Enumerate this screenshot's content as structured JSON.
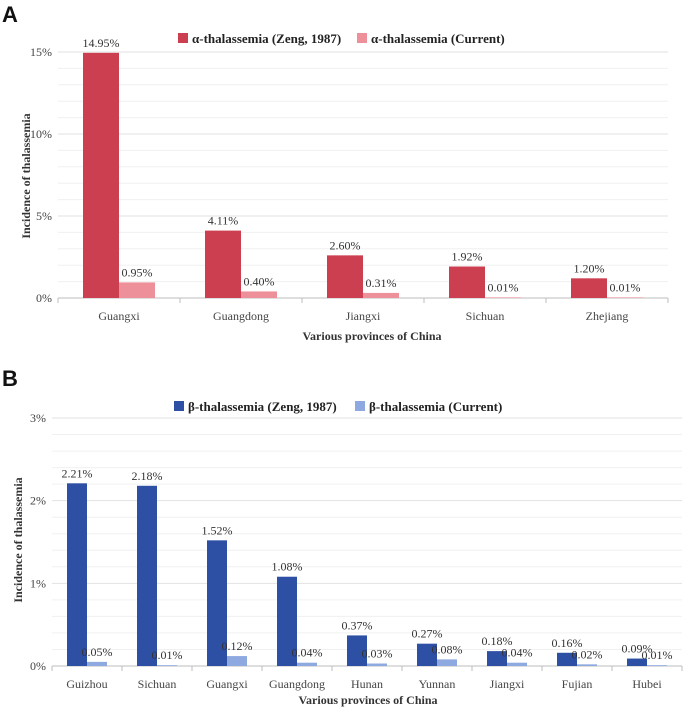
{
  "chart_data": [
    {
      "panel": "A",
      "type": "bar",
      "categories": [
        "Guangxi",
        "Guangdong",
        "Jiangxi",
        "Sichuan",
        "Zhejiang"
      ],
      "series": [
        {
          "name": "α-thalassemia (Zeng, 1987)",
          "color": "#cc3f50",
          "values": [
            14.95,
            4.11,
            2.6,
            1.92,
            1.2
          ],
          "labels": [
            "14.95%",
            "4.11%",
            "2.60%",
            "1.92%",
            "1.20%"
          ]
        },
        {
          "name": "α-thalassemia (Current)",
          "color": "#ee9099",
          "values": [
            0.95,
            0.4,
            0.31,
            0.01,
            0.01
          ],
          "labels": [
            "0.95%",
            "0.40%",
            "0.31%",
            "0.01%",
            "0.01%"
          ]
        }
      ],
      "xlabel": "Various provinces of China",
      "ylabel": "Incidence of thalassemia",
      "ylim": [
        0,
        15
      ],
      "yticks": [
        0,
        5,
        10,
        15
      ],
      "ytick_labels": [
        "0%",
        "5%",
        "10%",
        "15%"
      ],
      "legend": "top",
      "grid": true
    },
    {
      "panel": "B",
      "type": "bar",
      "categories": [
        "Guizhou",
        "Sichuan",
        "Guangxi",
        "Guangdong",
        "Hunan",
        "Yunnan",
        "Jiangxi",
        "Fujian",
        "Hubei"
      ],
      "series": [
        {
          "name": "β-thalassemia (Zeng, 1987)",
          "color": "#2e50a4",
          "values": [
            2.21,
            2.18,
            1.52,
            1.08,
            0.37,
            0.27,
            0.18,
            0.16,
            0.09
          ],
          "labels": [
            "2.21%",
            "2.18%",
            "1.52%",
            "1.08%",
            "0.37%",
            "0.27%",
            "0.18%",
            "0.16%",
            "0.09%"
          ]
        },
        {
          "name": "β-thalassemia (Current)",
          "color": "#8ea8e0",
          "values": [
            0.05,
            0.01,
            0.12,
            0.04,
            0.03,
            0.08,
            0.04,
            0.02,
            0.01
          ],
          "labels": [
            "0.05%",
            "0.01%",
            "0.12%",
            "0.04%",
            "0.03%",
            "0.08%",
            "0.04%",
            "0.02%",
            "0.01%"
          ]
        }
      ],
      "xlabel": "Various provinces of China",
      "ylabel": "Incidence of thalassemia",
      "ylim": [
        0,
        3
      ],
      "yticks": [
        0,
        1,
        2,
        3
      ],
      "ytick_labels": [
        "0%",
        "1%",
        "2%",
        "3%"
      ],
      "legend": "top",
      "grid": true
    }
  ]
}
